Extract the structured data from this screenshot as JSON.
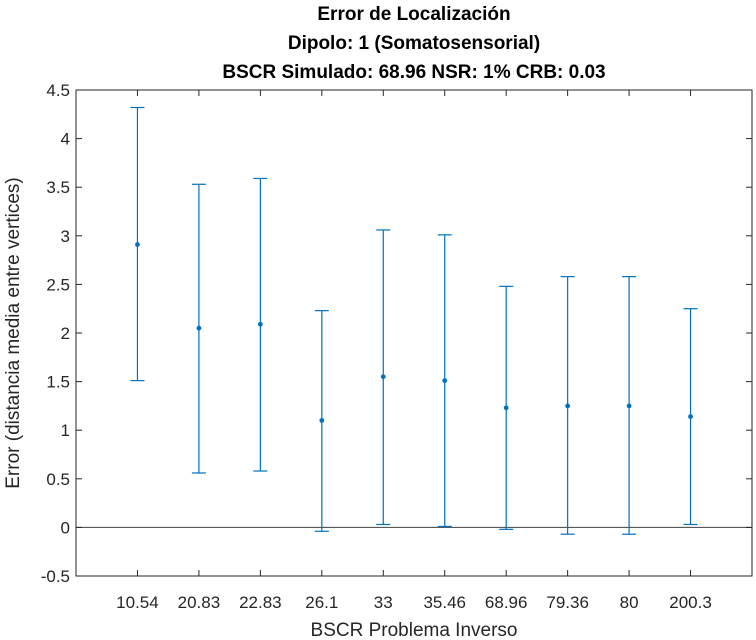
{
  "chart_data": {
    "type": "errorbar",
    "title": [
      "Error de Localización",
      "Dipolo: 1 (Somatosensorial)",
      "BSCR Simulado: 68.96 NSR: 1% CRB: 0.03"
    ],
    "xlabel": "BSCR Problema Inverso",
    "ylabel": "Error (distancia media entre vertices)",
    "categories": [
      "10.54",
      "20.83",
      "22.83",
      "26.1",
      "33",
      "35.46",
      "68.96",
      "79.36",
      "80",
      "200.3"
    ],
    "mean": [
      2.91,
      2.05,
      2.09,
      1.1,
      1.55,
      1.51,
      1.23,
      1.25,
      1.25,
      1.14
    ],
    "lower": [
      1.51,
      0.56,
      0.58,
      -0.04,
      0.03,
      0.01,
      -0.02,
      -0.07,
      -0.07,
      0.03
    ],
    "upper": [
      4.32,
      3.53,
      3.59,
      2.23,
      3.06,
      3.01,
      2.48,
      2.58,
      2.58,
      2.25
    ],
    "ylim": [
      -0.5,
      4.5
    ],
    "yticks": [
      -0.5,
      0,
      0.5,
      1,
      1.5,
      2,
      2.5,
      3,
      3.5,
      4,
      4.5
    ],
    "ytick_labels": [
      "-0.5",
      "0",
      "0.5",
      "1",
      "1.5",
      "2",
      "2.5",
      "3",
      "3.5",
      "4",
      "4.5"
    ],
    "reference_line": 0,
    "grid": false,
    "series_color": "#0072BD",
    "axis_color": "#262626",
    "reference_line_color": "#404040"
  }
}
